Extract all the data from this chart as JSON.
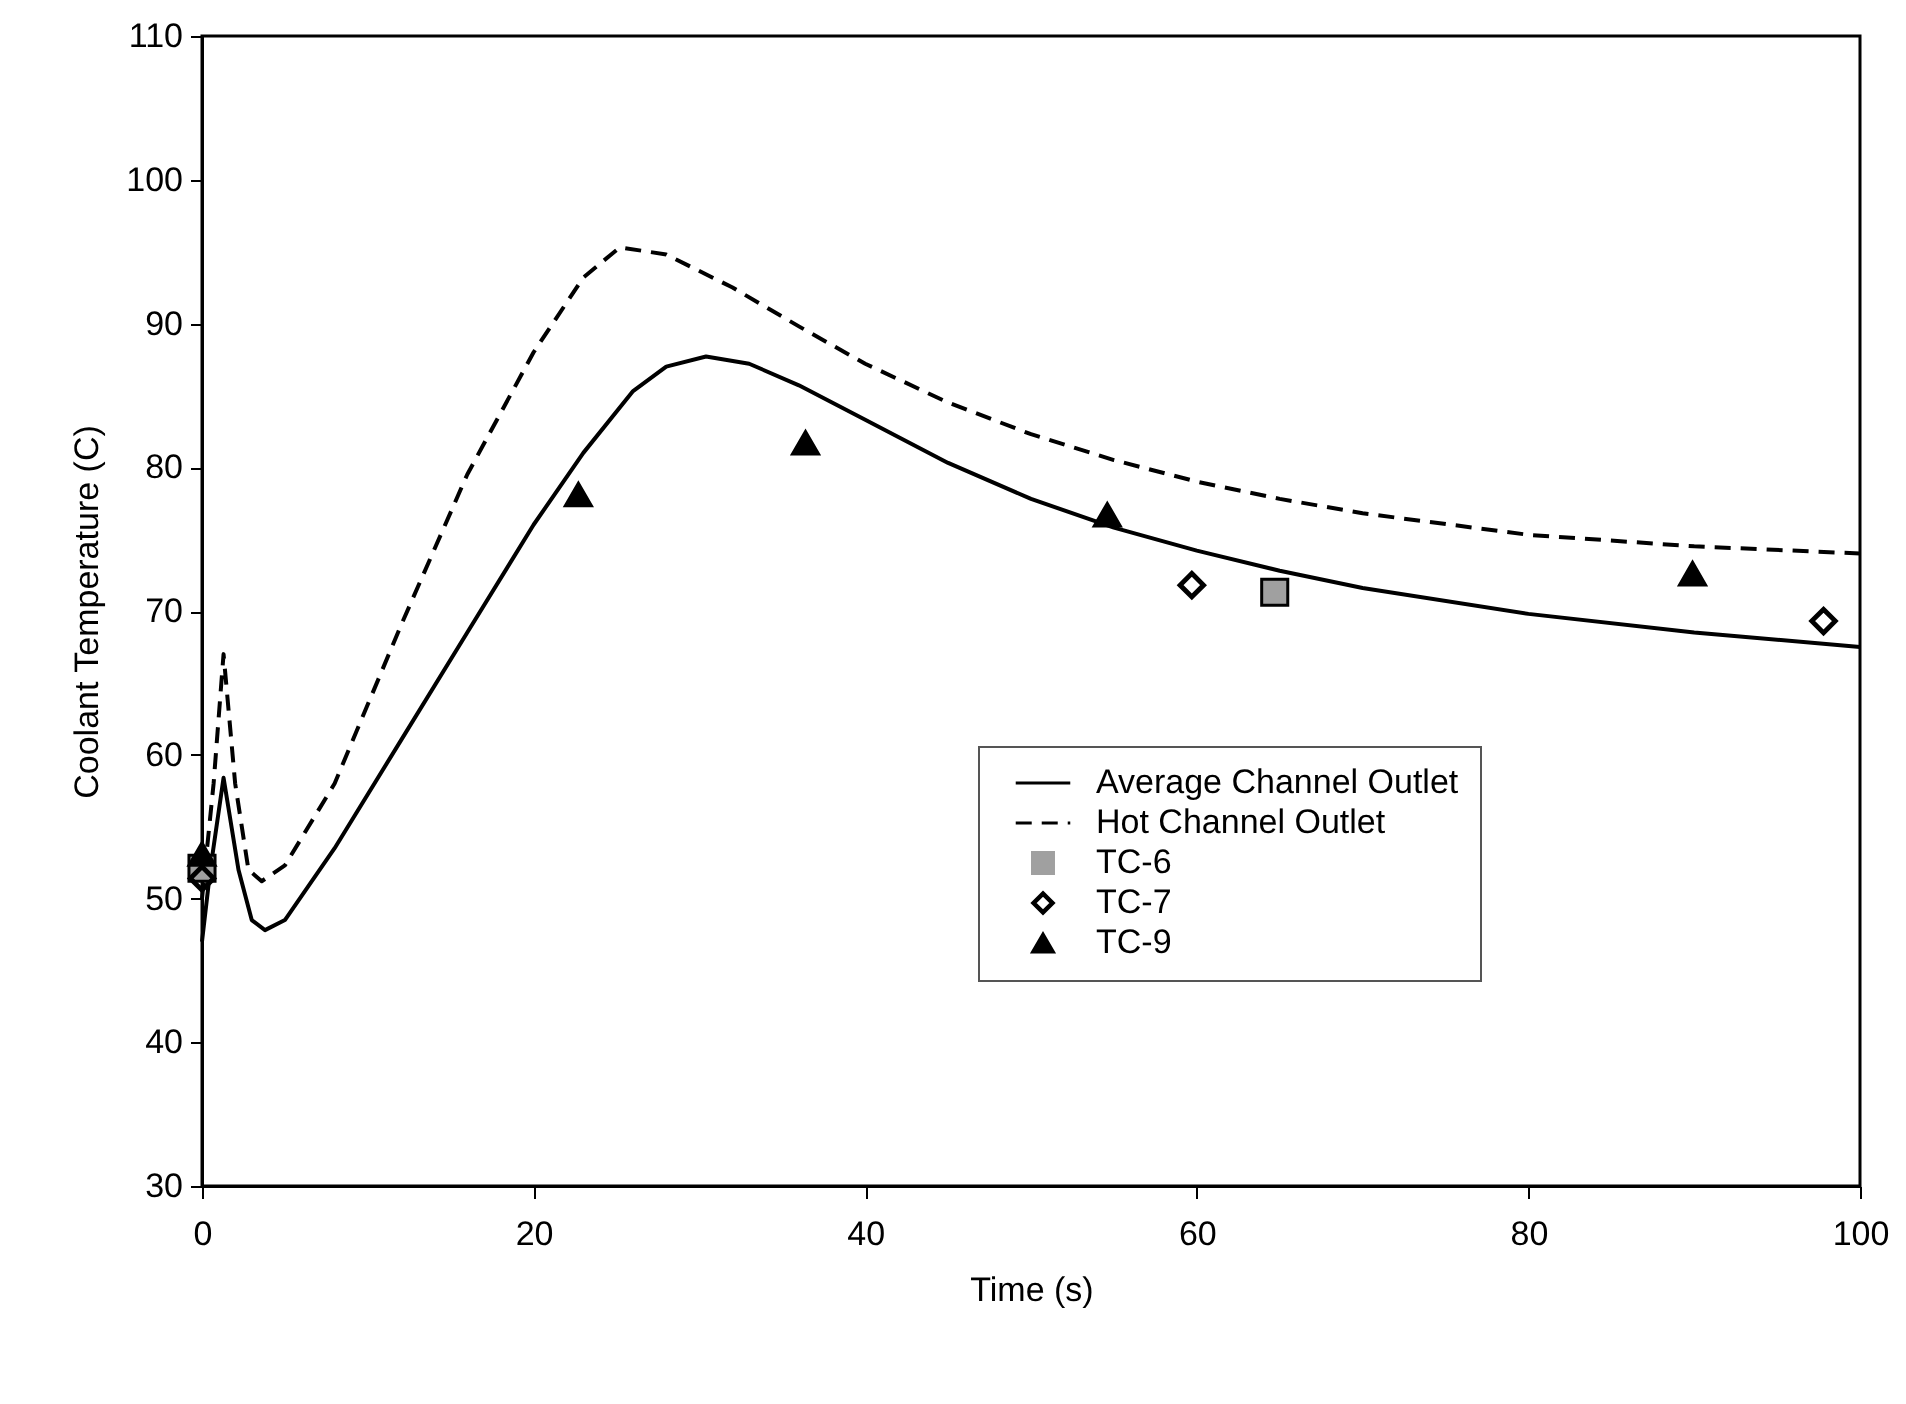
{
  "chart_data": {
    "type": "line",
    "xlabel": "Time (s)",
    "ylabel": "Coolant Temperature (C)",
    "xlim": [
      0,
      100
    ],
    "xticks": [
      0,
      20,
      40,
      60,
      80,
      100
    ],
    "ylim": [
      30,
      110
    ],
    "yticks": [
      30,
      40,
      50,
      60,
      70,
      80,
      90,
      100,
      110
    ],
    "grid": false,
    "legend": "bottom right",
    "series": [
      {
        "name": "Average Channel Outlet",
        "type": "line",
        "line_style": "solid",
        "marker": "none",
        "color": "#000000",
        "x": [
          0,
          0.5,
          1.3,
          2.2,
          3,
          3.8,
          5,
          8,
          12,
          16,
          20,
          23,
          26,
          28,
          30.4,
          33,
          36,
          40,
          45,
          50,
          55,
          60,
          65,
          70,
          80,
          90,
          100
        ],
        "values": [
          47,
          52,
          58.4,
          52,
          48.5,
          47.8,
          48.5,
          53.5,
          61,
          68.5,
          76,
          81,
          85.3,
          87,
          87.7,
          87.2,
          85.7,
          83.3,
          80.3,
          77.8,
          75.8,
          74.2,
          72.8,
          71.6,
          69.8,
          68.5,
          67.5
        ]
      },
      {
        "name": "Hot Channel Outlet",
        "type": "line",
        "line_style": "dashed",
        "marker": "none",
        "color": "#000000",
        "x": [
          0,
          0.7,
          1.3,
          2,
          2.8,
          3.6,
          5,
          8,
          12,
          16,
          20,
          23,
          25.2,
          28,
          32,
          36,
          40,
          45,
          50,
          55,
          60,
          65,
          70,
          80,
          90,
          100
        ],
        "values": [
          50,
          58,
          67,
          58,
          52,
          51.2,
          52.3,
          58,
          69,
          79.5,
          88,
          93.2,
          95.3,
          94.8,
          92.5,
          89.8,
          87.2,
          84.5,
          82.3,
          80.5,
          79,
          77.8,
          76.8,
          75.3,
          74.5,
          74
        ]
      },
      {
        "name": "TC-6",
        "type": "scatter",
        "marker": "square",
        "color": "#a0a0a0",
        "x": [
          0,
          64.7
        ],
        "values": [
          52.1,
          71.3
        ]
      },
      {
        "name": "TC-7",
        "type": "scatter",
        "marker": "diamond",
        "color": "#000000",
        "x": [
          0,
          59.7,
          97.8
        ],
        "values": [
          51.4,
          71.8,
          69.3
        ]
      },
      {
        "name": "TC-9",
        "type": "scatter",
        "marker": "triangle",
        "color": "#000000",
        "x": [
          0,
          22.7,
          36.4,
          54.6,
          89.9
        ],
        "values": [
          53.1,
          78.1,
          81.7,
          76.7,
          72.6
        ]
      }
    ]
  }
}
